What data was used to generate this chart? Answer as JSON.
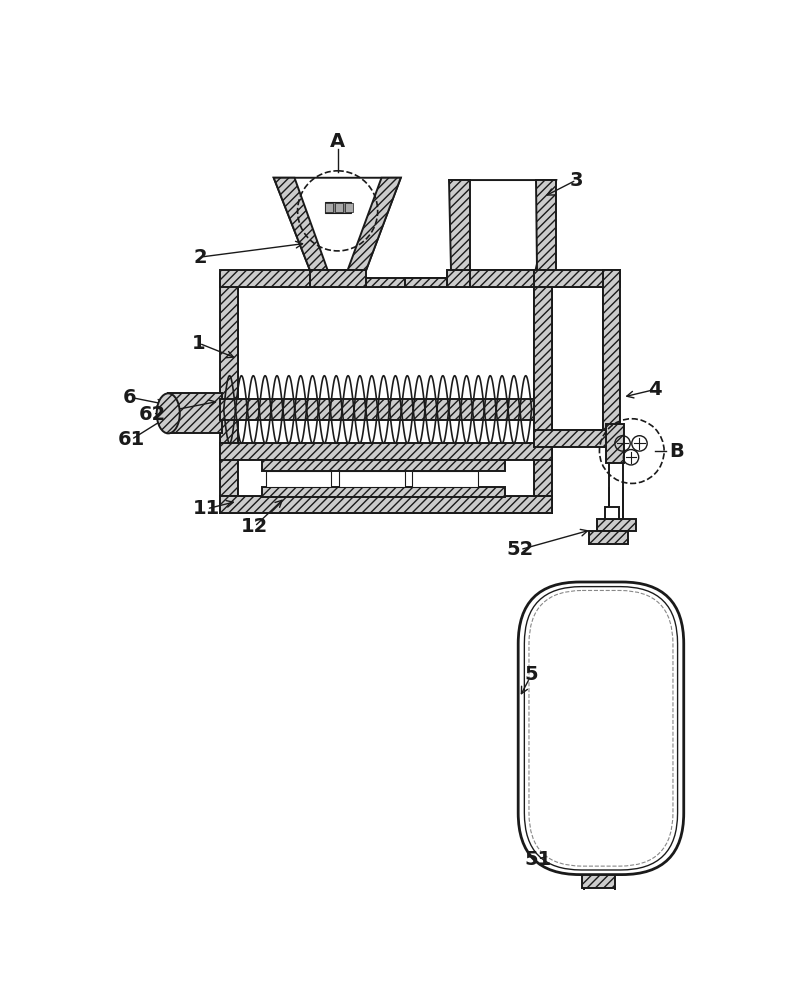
{
  "bg": "#ffffff",
  "lc": "#1a1a1a",
  "hfc": "#cccccc",
  "lw": 1.4,
  "tlw": 2.0
}
